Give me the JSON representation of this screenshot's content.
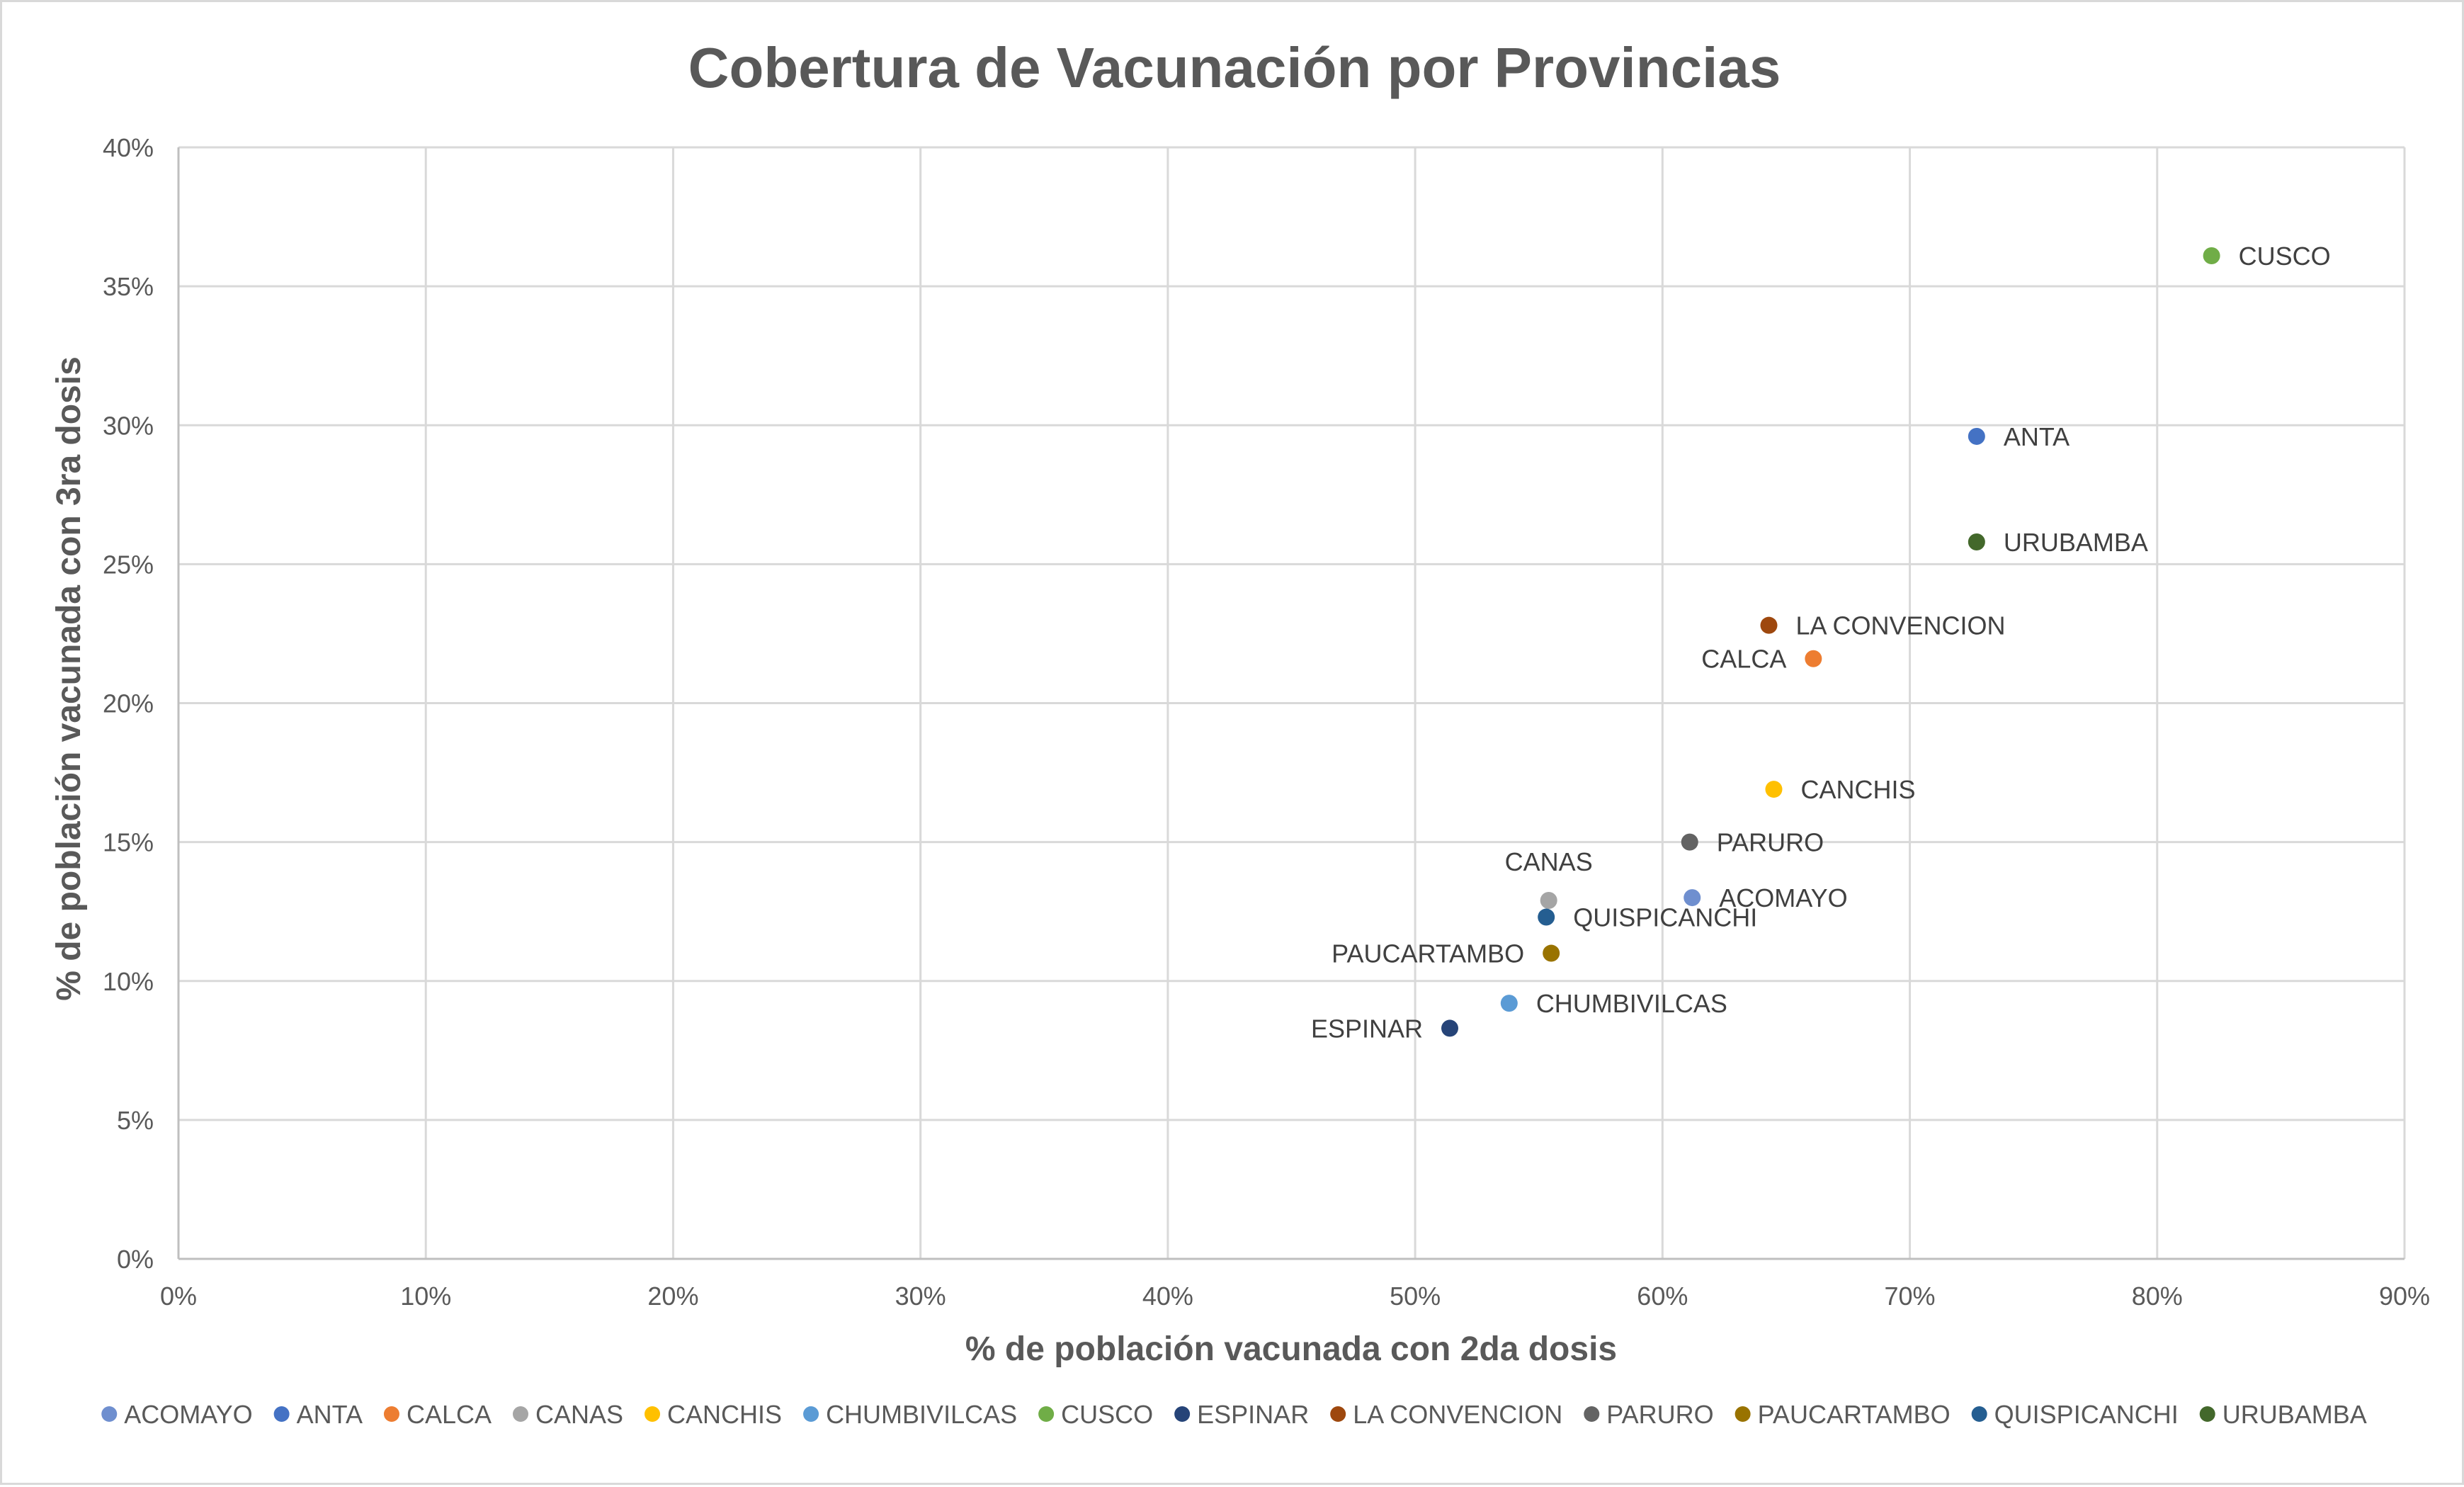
{
  "chart_data": {
    "type": "scatter",
    "title": "Cobertura de Vacunación por Provincias",
    "xlabel": "% de población vacunada con 2da dosis",
    "ylabel": "% de población vacunada con 3ra dosis",
    "xlim": [
      0,
      0.9
    ],
    "ylim": [
      0,
      0.4
    ],
    "x_ticks": [
      0,
      0.1,
      0.2,
      0.3,
      0.4,
      0.5,
      0.6,
      0.7,
      0.8,
      0.9
    ],
    "x_tick_labels": [
      "0%",
      "10%",
      "20%",
      "30%",
      "40%",
      "50%",
      "60%",
      "70%",
      "80%",
      "90%"
    ],
    "y_ticks": [
      0,
      0.05,
      0.1,
      0.15,
      0.2,
      0.25,
      0.3,
      0.35,
      0.4
    ],
    "y_tick_labels": [
      "0%",
      "5%",
      "10%",
      "15%",
      "20%",
      "25%",
      "30%",
      "35%",
      "40%"
    ],
    "grid": true,
    "legend_position": "bottom",
    "series": [
      {
        "name": "ACOMAYO",
        "x": 0.612,
        "y": 0.13,
        "color": "#6f8fcf",
        "label_pos": "right"
      },
      {
        "name": "ANTA",
        "x": 0.727,
        "y": 0.296,
        "color": "#4472c4",
        "label_pos": "right"
      },
      {
        "name": "CALCA",
        "x": 0.661,
        "y": 0.216,
        "color": "#ed7d31",
        "label_pos": "left"
      },
      {
        "name": "CANAS",
        "x": 0.554,
        "y": 0.129,
        "color": "#a5a5a5",
        "label_pos": "above"
      },
      {
        "name": "CANCHIS",
        "x": 0.645,
        "y": 0.169,
        "color": "#ffc000",
        "label_pos": "right"
      },
      {
        "name": "CHUMBIVILCAS",
        "x": 0.538,
        "y": 0.092,
        "color": "#5b9bd5",
        "label_pos": "right"
      },
      {
        "name": "CUSCO",
        "x": 0.822,
        "y": 0.361,
        "color": "#70ad47",
        "label_pos": "right"
      },
      {
        "name": "ESPINAR",
        "x": 0.514,
        "y": 0.083,
        "color": "#264478",
        "label_pos": "left"
      },
      {
        "name": "LA CONVENCION",
        "x": 0.643,
        "y": 0.228,
        "color": "#9e480e",
        "label_pos": "right"
      },
      {
        "name": "PARURO",
        "x": 0.611,
        "y": 0.15,
        "color": "#636363",
        "label_pos": "right"
      },
      {
        "name": "PAUCARTAMBO",
        "x": 0.555,
        "y": 0.11,
        "color": "#997300",
        "label_pos": "left"
      },
      {
        "name": "QUISPICANCHI",
        "x": 0.553,
        "y": 0.123,
        "color": "#255e91",
        "label_pos": "right"
      },
      {
        "name": "URUBAMBA",
        "x": 0.727,
        "y": 0.258,
        "color": "#43682b",
        "label_pos": "right"
      }
    ]
  }
}
